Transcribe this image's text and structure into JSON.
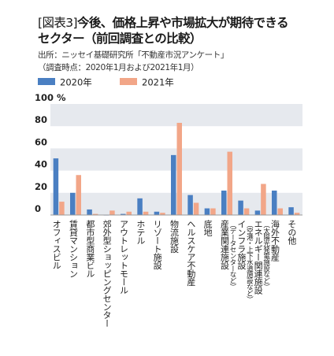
{
  "header": {
    "fig_label": "[図表3]",
    "title_line1": "今後、価格上昇や市場拡大が期待できる",
    "title_line2": "セクター（前回調査との比較）",
    "source": "出所：ニッセイ基礎研究所「不動産市況アンケート」",
    "survey_period": "（調査時点：2020年1月および2021年1月）"
  },
  "colors": {
    "series_2020": "#4a7fc2",
    "series_2021": "#f2a688",
    "band": "#e6e9ee",
    "axis": "#999999"
  },
  "chart_data": {
    "type": "bar",
    "ylabel": "%",
    "ylim": [
      0,
      100
    ],
    "yticks": [
      0,
      20,
      40,
      60,
      80,
      100
    ],
    "ytick_labels": [
      "0",
      "20",
      "40",
      "60",
      "80",
      "100 %"
    ],
    "grid": "alternating horizontal bands",
    "legend": "top-left",
    "categories": [
      "オフィスビル",
      "賃貸マンション",
      "都市型商業ビル",
      "郊外型ショッピングセンター",
      "アウトレットモール",
      "ホテル",
      "リゾート施設",
      "物流施設",
      "ヘルスケア不動産",
      "底地",
      "産業関連施設",
      "インフラ施設",
      "エネルギー関連施設",
      "海外不動産",
      "その他"
    ],
    "category_notes": [
      "",
      "",
      "",
      "",
      "",
      "",
      "",
      "",
      "",
      "",
      "（データセンターなど）",
      "（空港・上下水道施設など）",
      "（太陽光発電施設など）",
      "",
      ""
    ],
    "series": [
      {
        "name": "2020年",
        "values": [
          51,
          20,
          5,
          0,
          1,
          15,
          3,
          54,
          18,
          6,
          22,
          13,
          4,
          22,
          7
        ]
      },
      {
        "name": "2021年",
        "values": [
          12,
          36,
          1,
          4,
          3,
          3,
          2,
          83,
          11,
          6,
          57,
          6,
          28,
          6,
          2
        ]
      }
    ]
  }
}
